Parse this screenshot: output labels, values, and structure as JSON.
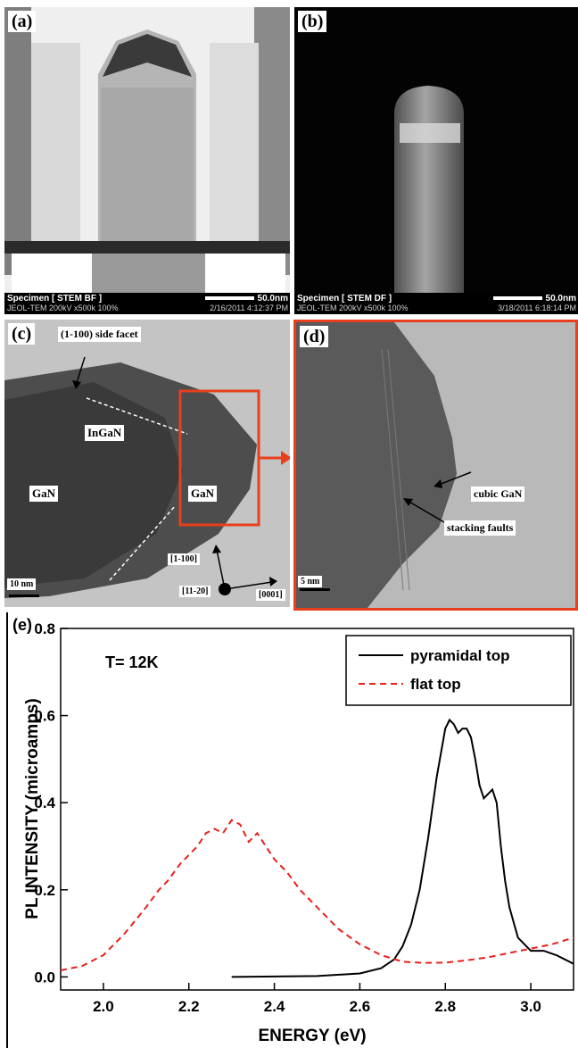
{
  "panel_a": {
    "label": "(a)",
    "footer_line1": "Specimen [ STEM BF ]",
    "footer_line2": "JEOL-TEM 200kV x500k 100%",
    "scale": "50.0nm",
    "timestamp": "2/16/2011 4:12:37 PM"
  },
  "panel_b": {
    "label": "(b)",
    "footer_line1": "Specimen [ STEM DF ]",
    "footer_line2": "JEOL-TEM 200kV x500k 100%",
    "scale": "50.0nm",
    "timestamp": "3/18/2011 6:18:14 PM"
  },
  "panel_c": {
    "label": "(c)",
    "facet_label": "(1-100) side facet",
    "ingan": "InGaN",
    "gan_left": "GaN",
    "gan_right": "GaN",
    "dir_1100": "[1-100]",
    "dir_1120": "[11-20]",
    "dir_0001": "[0001]",
    "scale": "10 nm",
    "highlight_color": "#e8401c"
  },
  "panel_d": {
    "label": "(d)",
    "cubic": "cubic GaN",
    "faults": "stacking faults",
    "scale": "5 nm"
  },
  "panel_e": {
    "label": "(e)"
  },
  "chart_data": {
    "type": "line",
    "annotation": "T= 12K",
    "xlabel": "ENERGY (eV)",
    "ylabel": "PL INTENSITY (microamps)",
    "xlim": [
      1.9,
      3.1
    ],
    "ylim": [
      -0.03,
      0.8
    ],
    "xticks": [
      "2.0",
      "2.2",
      "2.4",
      "2.6",
      "2.8",
      "3.0"
    ],
    "yticks": [
      "0.0",
      "0.2",
      "0.4",
      "0.6",
      "0.8"
    ],
    "legend_position": "top-right",
    "series": [
      {
        "name": "pyramidal top",
        "color": "#000000",
        "dash": "solid",
        "x": [
          2.3,
          2.5,
          2.6,
          2.65,
          2.68,
          2.7,
          2.72,
          2.74,
          2.76,
          2.78,
          2.8,
          2.81,
          2.82,
          2.83,
          2.84,
          2.85,
          2.86,
          2.87,
          2.88,
          2.89,
          2.9,
          2.91,
          2.92,
          2.93,
          2.94,
          2.95,
          2.97,
          3.0,
          3.03,
          3.06,
          3.08,
          3.1
        ],
        "y": [
          0.0,
          0.002,
          0.008,
          0.02,
          0.04,
          0.07,
          0.12,
          0.2,
          0.32,
          0.46,
          0.57,
          0.59,
          0.58,
          0.56,
          0.57,
          0.57,
          0.55,
          0.5,
          0.44,
          0.41,
          0.42,
          0.43,
          0.4,
          0.3,
          0.22,
          0.16,
          0.09,
          0.06,
          0.06,
          0.05,
          0.04,
          0.03
        ]
      },
      {
        "name": "flat top",
        "color": "#e8201c",
        "dash": "dashed",
        "x": [
          1.9,
          1.95,
          2.0,
          2.05,
          2.1,
          2.13,
          2.15,
          2.18,
          2.2,
          2.22,
          2.24,
          2.26,
          2.28,
          2.3,
          2.32,
          2.34,
          2.36,
          2.38,
          2.4,
          2.43,
          2.46,
          2.5,
          2.55,
          2.6,
          2.65,
          2.7,
          2.75,
          2.8,
          2.85,
          2.9,
          2.95,
          3.0,
          3.05,
          3.1
        ],
        "y": [
          0.015,
          0.025,
          0.05,
          0.1,
          0.16,
          0.2,
          0.22,
          0.26,
          0.28,
          0.3,
          0.33,
          0.34,
          0.33,
          0.36,
          0.35,
          0.31,
          0.33,
          0.3,
          0.27,
          0.24,
          0.2,
          0.16,
          0.11,
          0.075,
          0.05,
          0.035,
          0.032,
          0.033,
          0.038,
          0.045,
          0.055,
          0.065,
          0.075,
          0.09
        ]
      }
    ]
  }
}
